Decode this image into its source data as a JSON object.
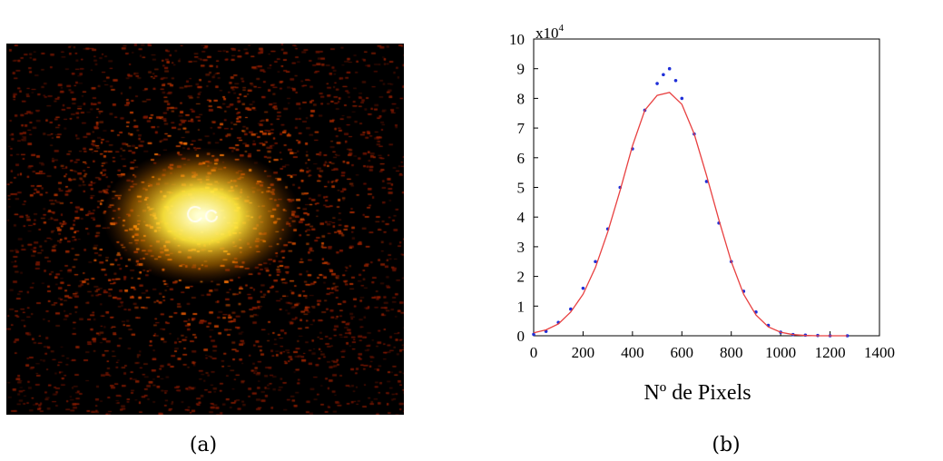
{
  "figure": {
    "caption_a": "(a)",
    "caption_b": "(b)"
  },
  "speckle_image": {
    "colormap": [
      "#000000",
      "#5a1f00",
      "#c06000",
      "#ffb000",
      "#ffff80"
    ],
    "background": "#000000"
  },
  "chart_data": {
    "type": "scatter",
    "xlabel": "Nº de Pixels",
    "ylabel": "",
    "y_multiplier": "x10",
    "y_multiplier_exp": "4",
    "xlim": [
      0,
      1400
    ],
    "ylim": [
      0,
      10
    ],
    "xticks": [
      "0",
      "200",
      "400",
      "600",
      "800",
      "1000",
      "1200",
      "1400"
    ],
    "yticks": [
      "0",
      "1",
      "2",
      "3",
      "4",
      "5",
      "6",
      "7",
      "8",
      "9",
      "10"
    ],
    "grid": false,
    "series": [
      {
        "kind": "points",
        "color": "#1f2fd8",
        "x": [
          0,
          50,
          100,
          150,
          200,
          250,
          300,
          350,
          400,
          450,
          500,
          525,
          550,
          575,
          600,
          650,
          700,
          750,
          800,
          850,
          900,
          950,
          1000,
          1050,
          1100,
          1150,
          1200,
          1270
        ],
        "y": [
          0.05,
          0.15,
          0.45,
          0.9,
          1.6,
          2.5,
          3.6,
          5.0,
          6.3,
          7.6,
          8.5,
          8.8,
          9.0,
          8.6,
          8.0,
          6.8,
          5.2,
          3.8,
          2.5,
          1.5,
          0.8,
          0.35,
          0.12,
          0.04,
          0.02,
          0.01,
          0.0,
          0.0
        ]
      },
      {
        "kind": "line",
        "color": "#e84040",
        "x": [
          0,
          50,
          100,
          150,
          200,
          250,
          300,
          350,
          400,
          450,
          500,
          550,
          600,
          650,
          700,
          750,
          800,
          850,
          900,
          950,
          1000,
          1050,
          1100,
          1150,
          1200,
          1270
        ],
        "y": [
          0.1,
          0.2,
          0.4,
          0.8,
          1.4,
          2.3,
          3.5,
          4.9,
          6.4,
          7.6,
          8.1,
          8.2,
          7.8,
          6.8,
          5.4,
          3.9,
          2.5,
          1.4,
          0.7,
          0.3,
          0.12,
          0.04,
          0.01,
          0.0,
          0.0,
          0.0
        ]
      }
    ]
  }
}
